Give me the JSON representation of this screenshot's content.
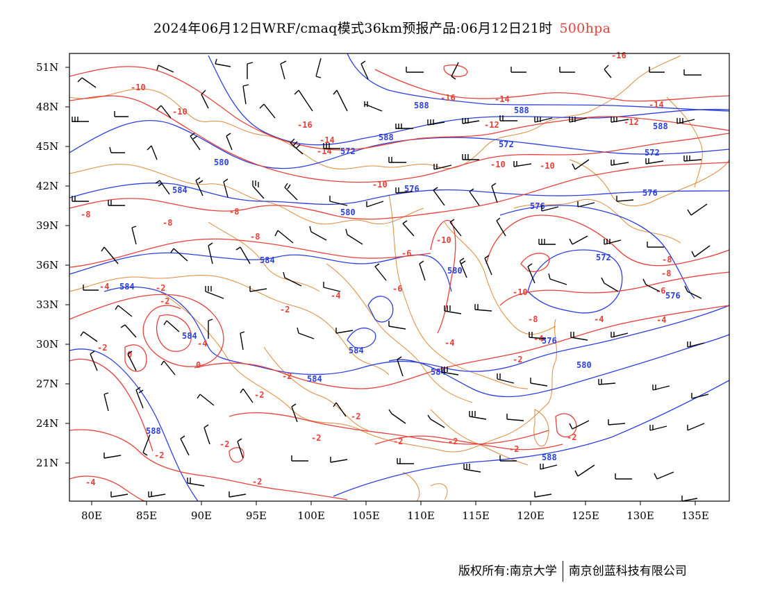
{
  "title": {
    "main": "2024年06月12日WRF/cmaq模式36km预报产品:06月12日21时",
    "level": "500hpa",
    "level_color": "#e8403a"
  },
  "axes": {
    "lon_labels": [
      "80E",
      "85E",
      "90E",
      "95E",
      "100E",
      "105E",
      "110E",
      "115E",
      "120E",
      "125E",
      "130E",
      "135E"
    ],
    "lat_labels": [
      "51N",
      "48N",
      "45N",
      "42N",
      "39N",
      "36N",
      "33N",
      "30N",
      "27N",
      "24N",
      "21N"
    ]
  },
  "colors": {
    "height_contour": "#2b3fe0",
    "temp_contour": "#e8403a",
    "borders": "#e08a3a",
    "wind_barb": "#000000"
  },
  "height_labels": [
    "584",
    "588",
    "580",
    "572",
    "588",
    "572",
    "588",
    "576",
    "580",
    "576",
    "572",
    "576",
    "584",
    "584",
    "580",
    "576",
    "584",
    "588",
    "584",
    "584",
    "588",
    "588",
    "580",
    "584",
    "572",
    "576"
  ],
  "temp_labels": [
    "-10",
    "-16",
    "-14",
    "-10",
    "-14",
    "-16",
    "-12",
    "-12",
    "-14",
    "-16",
    "-14",
    "-10",
    "-10",
    "-10",
    "-8",
    "-8",
    "-8",
    "-8",
    "-10",
    "-6",
    "-6",
    "-8",
    "-4",
    "-4",
    "-2",
    "-2",
    "-2",
    "-4",
    "-2",
    "-4",
    "-10",
    "-8",
    "-6",
    "-8",
    "-4",
    "-4",
    "-4",
    "-2",
    "-2",
    "0",
    "0",
    "-2",
    "-2",
    "-2",
    "-2",
    "-2",
    "-2",
    "-2",
    "-2",
    "-2",
    "-2",
    "-4"
  ],
  "footer": {
    "left": "版权所有:南京大学",
    "right": "南京创蓝科技有限公司"
  }
}
